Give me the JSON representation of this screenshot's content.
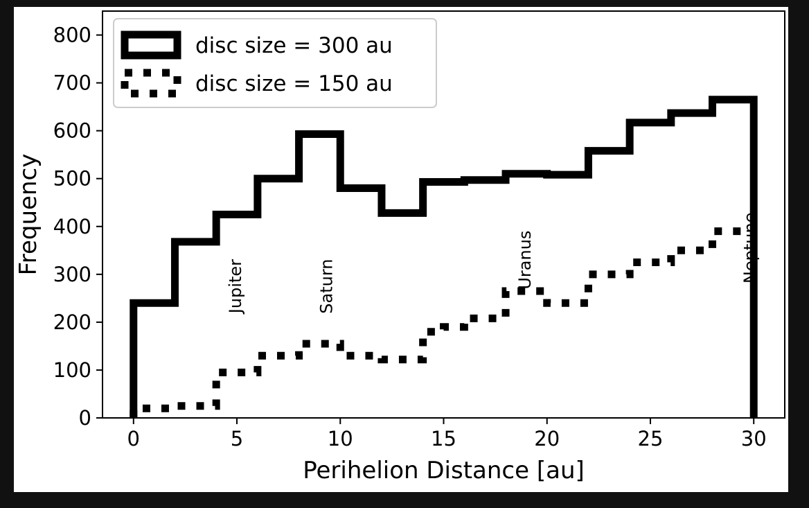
{
  "chart_data": {
    "type": "histogram-step",
    "xlabel": "Perihelion Distance [au]",
    "ylabel": "Frequency",
    "xlim": [
      -1.5,
      31.5
    ],
    "ylim": [
      0,
      850
    ],
    "xticks": [
      0,
      5,
      10,
      15,
      20,
      25,
      30
    ],
    "yticks": [
      0,
      100,
      200,
      300,
      400,
      500,
      600,
      700,
      800
    ],
    "legend_position": "upper-left",
    "series": [
      {
        "name": "disc size = 300 au",
        "style": "solid",
        "color": "#000000",
        "bin_edges": [
          0,
          2,
          4,
          6,
          8,
          10,
          12,
          14,
          16,
          18,
          20,
          22,
          24,
          26,
          28,
          30
        ],
        "values": [
          240,
          368,
          425,
          500,
          593,
          480,
          428,
          493,
          497,
          510,
          508,
          558,
          617,
          637,
          665
        ]
      },
      {
        "name": "disc size = 150 au",
        "style": "dotted",
        "color": "#000000",
        "bin_edges": [
          0,
          1,
          2,
          3,
          4,
          5,
          6,
          7,
          8,
          9,
          10,
          11,
          12,
          13,
          14,
          15,
          16,
          17,
          18,
          19,
          20,
          21,
          22,
          23,
          24,
          25,
          26,
          27,
          28,
          29,
          30
        ],
        "values": [
          20,
          20,
          25,
          25,
          95,
          95,
          130,
          130,
          155,
          155,
          130,
          130,
          122,
          122,
          180,
          190,
          208,
          208,
          265,
          265,
          240,
          240,
          300,
          300,
          325,
          325,
          350,
          350,
          390,
          390
        ]
      }
    ],
    "annotations": [
      {
        "text": "Jupiter",
        "x": 5.2,
        "y": 275
      },
      {
        "text": "Saturn",
        "x": 9.6,
        "y": 275
      },
      {
        "text": "Uranus",
        "x": 19.2,
        "y": 330
      },
      {
        "text": "Neptune",
        "x": 30.1,
        "y": 355
      }
    ]
  }
}
